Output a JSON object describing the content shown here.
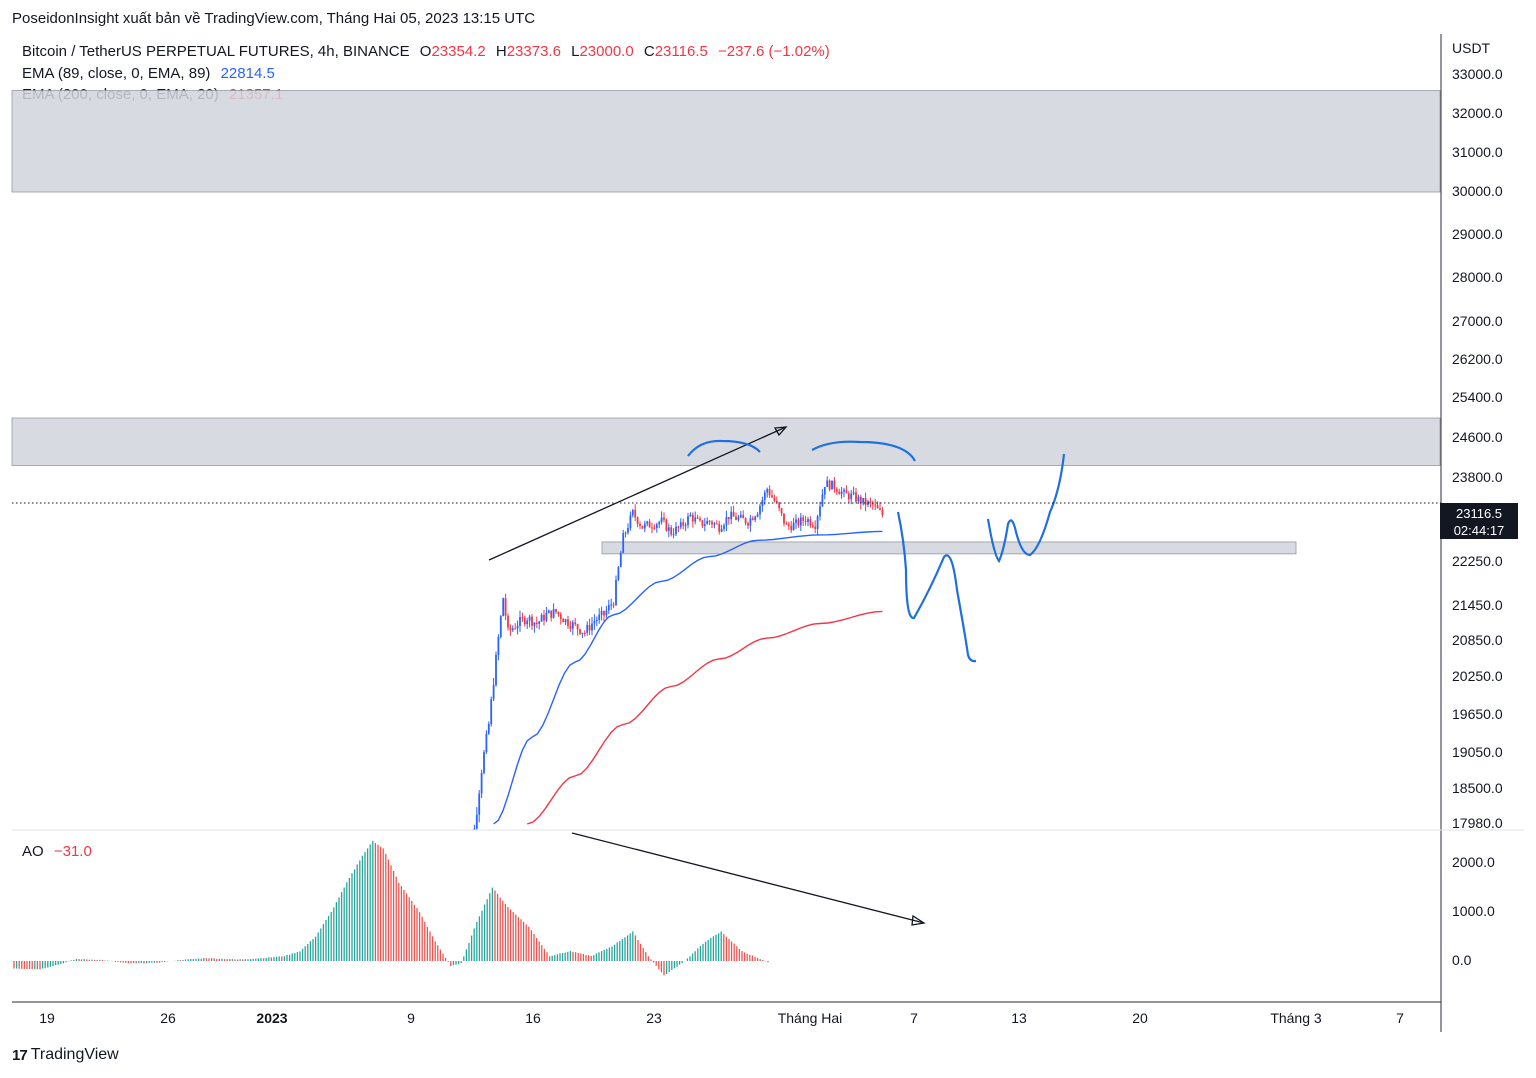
{
  "attribution": "PoseidonInsight xuất bản về TradingView.com, Tháng Hai 05, 2023 13:15 UTC",
  "legend": {
    "symbol": "Bitcoin / TetherUS PERPETUAL FUTURES, 4h, BINANCE",
    "o_label": "O",
    "o_value": "23354.2",
    "h_label": "H",
    "h_value": "23373.6",
    "l_label": "L",
    "l_value": "23000.0",
    "c_label": "C",
    "c_value": "23116.5",
    "change": "−237.6 (−1.02%)",
    "ema1_label": "EMA (89, close, 0, EMA, 89)",
    "ema1_value": "22814.5",
    "ema2_label": "EMA (200, close, 0, EMA, 20)",
    "ema2_value": "21357.1",
    "ao_label": "AO",
    "ao_value": "−31.0"
  },
  "colors": {
    "up": "#26a69a",
    "down": "#ef5350",
    "candle_up": "#2962ff",
    "candle_down": "#f23645",
    "ema89": "#2962ff",
    "ema200": "#f23645",
    "zone": "#d1d4dc",
    "drawing": "#1e6fe0"
  },
  "price_axis": {
    "unit": "USDT",
    "ticks": [
      "33000.0",
      "32000.0",
      "31000.0",
      "30000.0",
      "29000.0",
      "28000.0",
      "27000.0",
      "26200.0",
      "25400.0",
      "24600.0",
      "23800.0",
      "22250.0",
      "21450.0",
      "20850.0",
      "20250.0",
      "19650.0",
      "19050.0",
      "18500.0",
      "17980.0"
    ],
    "current_price": "23116.5",
    "countdown": "02:44:17"
  },
  "ao_axis": {
    "ticks": [
      "2000.0",
      "1000.0",
      "0.0"
    ]
  },
  "time_axis": {
    "labels": [
      {
        "text": "19",
        "bold": false
      },
      {
        "text": "26",
        "bold": false
      },
      {
        "text": "2023",
        "bold": true
      },
      {
        "text": "9",
        "bold": false
      },
      {
        "text": "16",
        "bold": false
      },
      {
        "text": "23",
        "bold": false
      },
      {
        "text": "Tháng Hai",
        "bold": false
      },
      {
        "text": "7",
        "bold": false
      },
      {
        "text": "13",
        "bold": false
      },
      {
        "text": "20",
        "bold": false
      },
      {
        "text": "Tháng 3",
        "bold": false
      },
      {
        "text": "7",
        "bold": false
      }
    ]
  },
  "footer": {
    "brand": "TradingView",
    "mark": "17"
  },
  "chart_data": {
    "type": "candlestick",
    "symbol": "BTCUSDT.P",
    "interval": "4h",
    "ohlc_last": {
      "open": 23354.2,
      "high": 23373.6,
      "low": 23000.0,
      "close": 23116.5
    },
    "price_path": [
      [
        0,
        16800
      ],
      [
        4,
        17300
      ],
      [
        6,
        17900
      ],
      [
        9,
        18800
      ],
      [
        12,
        19500
      ],
      [
        16,
        20900
      ],
      [
        18,
        21600
      ],
      [
        20,
        21000
      ],
      [
        24,
        21150
      ],
      [
        28,
        21250
      ],
      [
        32,
        21150
      ],
      [
        36,
        21300
      ],
      [
        40,
        21350
      ],
      [
        44,
        21200
      ],
      [
        48,
        21100
      ],
      [
        52,
        21000
      ],
      [
        56,
        21200
      ],
      [
        60,
        21300
      ],
      [
        64,
        21550
      ],
      [
        68,
        22700
      ],
      [
        72,
        23150
      ],
      [
        76,
        22900
      ],
      [
        80,
        22950
      ],
      [
        84,
        23000
      ],
      [
        88,
        22800
      ],
      [
        92,
        22900
      ],
      [
        96,
        23100
      ],
      [
        100,
        22950
      ],
      [
        104,
        23000
      ],
      [
        108,
        22900
      ],
      [
        112,
        23100
      ],
      [
        116,
        23050
      ],
      [
        120,
        23000
      ],
      [
        124,
        23200
      ],
      [
        128,
        23600
      ],
      [
        132,
        23300
      ],
      [
        136,
        22900
      ],
      [
        140,
        22950
      ],
      [
        144,
        23050
      ],
      [
        148,
        22950
      ],
      [
        152,
        23700
      ],
      [
        156,
        23650
      ],
      [
        160,
        23500
      ],
      [
        164,
        23450
      ],
      [
        168,
        23350
      ],
      [
        172,
        23300
      ],
      [
        176,
        23116.5
      ]
    ],
    "ema89_path": [
      [
        14,
        17980
      ],
      [
        30,
        19300
      ],
      [
        48,
        20500
      ],
      [
        64,
        21300
      ],
      [
        84,
        21900
      ],
      [
        104,
        22350
      ],
      [
        124,
        22650
      ],
      [
        150,
        22750
      ],
      [
        176,
        22814.5
      ]
    ],
    "ema200_path": [
      [
        28,
        17980
      ],
      [
        48,
        18700
      ],
      [
        68,
        19500
      ],
      [
        88,
        20100
      ],
      [
        108,
        20550
      ],
      [
        128,
        20900
      ],
      [
        150,
        21150
      ],
      [
        176,
        21357.1
      ]
    ],
    "zones": [
      {
        "from": 30000,
        "to": 32600
      },
      {
        "from": 24050,
        "to": 25000
      },
      {
        "from": 22400,
        "to": 22620
      }
    ],
    "ao_histogram": {
      "value_last": -31.0,
      "profile": [
        [
          0,
          -150
        ],
        [
          10,
          -170
        ],
        [
          18,
          -60
        ],
        [
          24,
          40
        ],
        [
          34,
          20
        ],
        [
          44,
          -50
        ],
        [
          54,
          -40
        ],
        [
          64,
          20
        ],
        [
          74,
          60
        ],
        [
          86,
          30
        ],
        [
          96,
          60
        ],
        [
          104,
          100
        ],
        [
          110,
          200
        ],
        [
          116,
          500
        ],
        [
          122,
          1000
        ],
        [
          128,
          1600
        ],
        [
          134,
          2150
        ],
        [
          138,
          2450
        ],
        [
          142,
          2300
        ],
        [
          148,
          1600
        ],
        [
          156,
          1000
        ],
        [
          162,
          400
        ],
        [
          168,
          -100
        ],
        [
          172,
          -50
        ],
        [
          178,
          800
        ],
        [
          184,
          1500
        ],
        [
          190,
          1100
        ],
        [
          198,
          700
        ],
        [
          206,
          100
        ],
        [
          214,
          200
        ],
        [
          222,
          100
        ],
        [
          230,
          300
        ],
        [
          238,
          600
        ],
        [
          244,
          100
        ],
        [
          250,
          -300
        ],
        [
          258,
          0
        ],
        [
          266,
          400
        ],
        [
          272,
          600
        ],
        [
          280,
          200
        ],
        [
          290,
          -31
        ]
      ]
    },
    "drawings": [
      "uptrend line",
      "downtrend line on AO",
      "projected price path",
      "double-top arcs"
    ]
  }
}
